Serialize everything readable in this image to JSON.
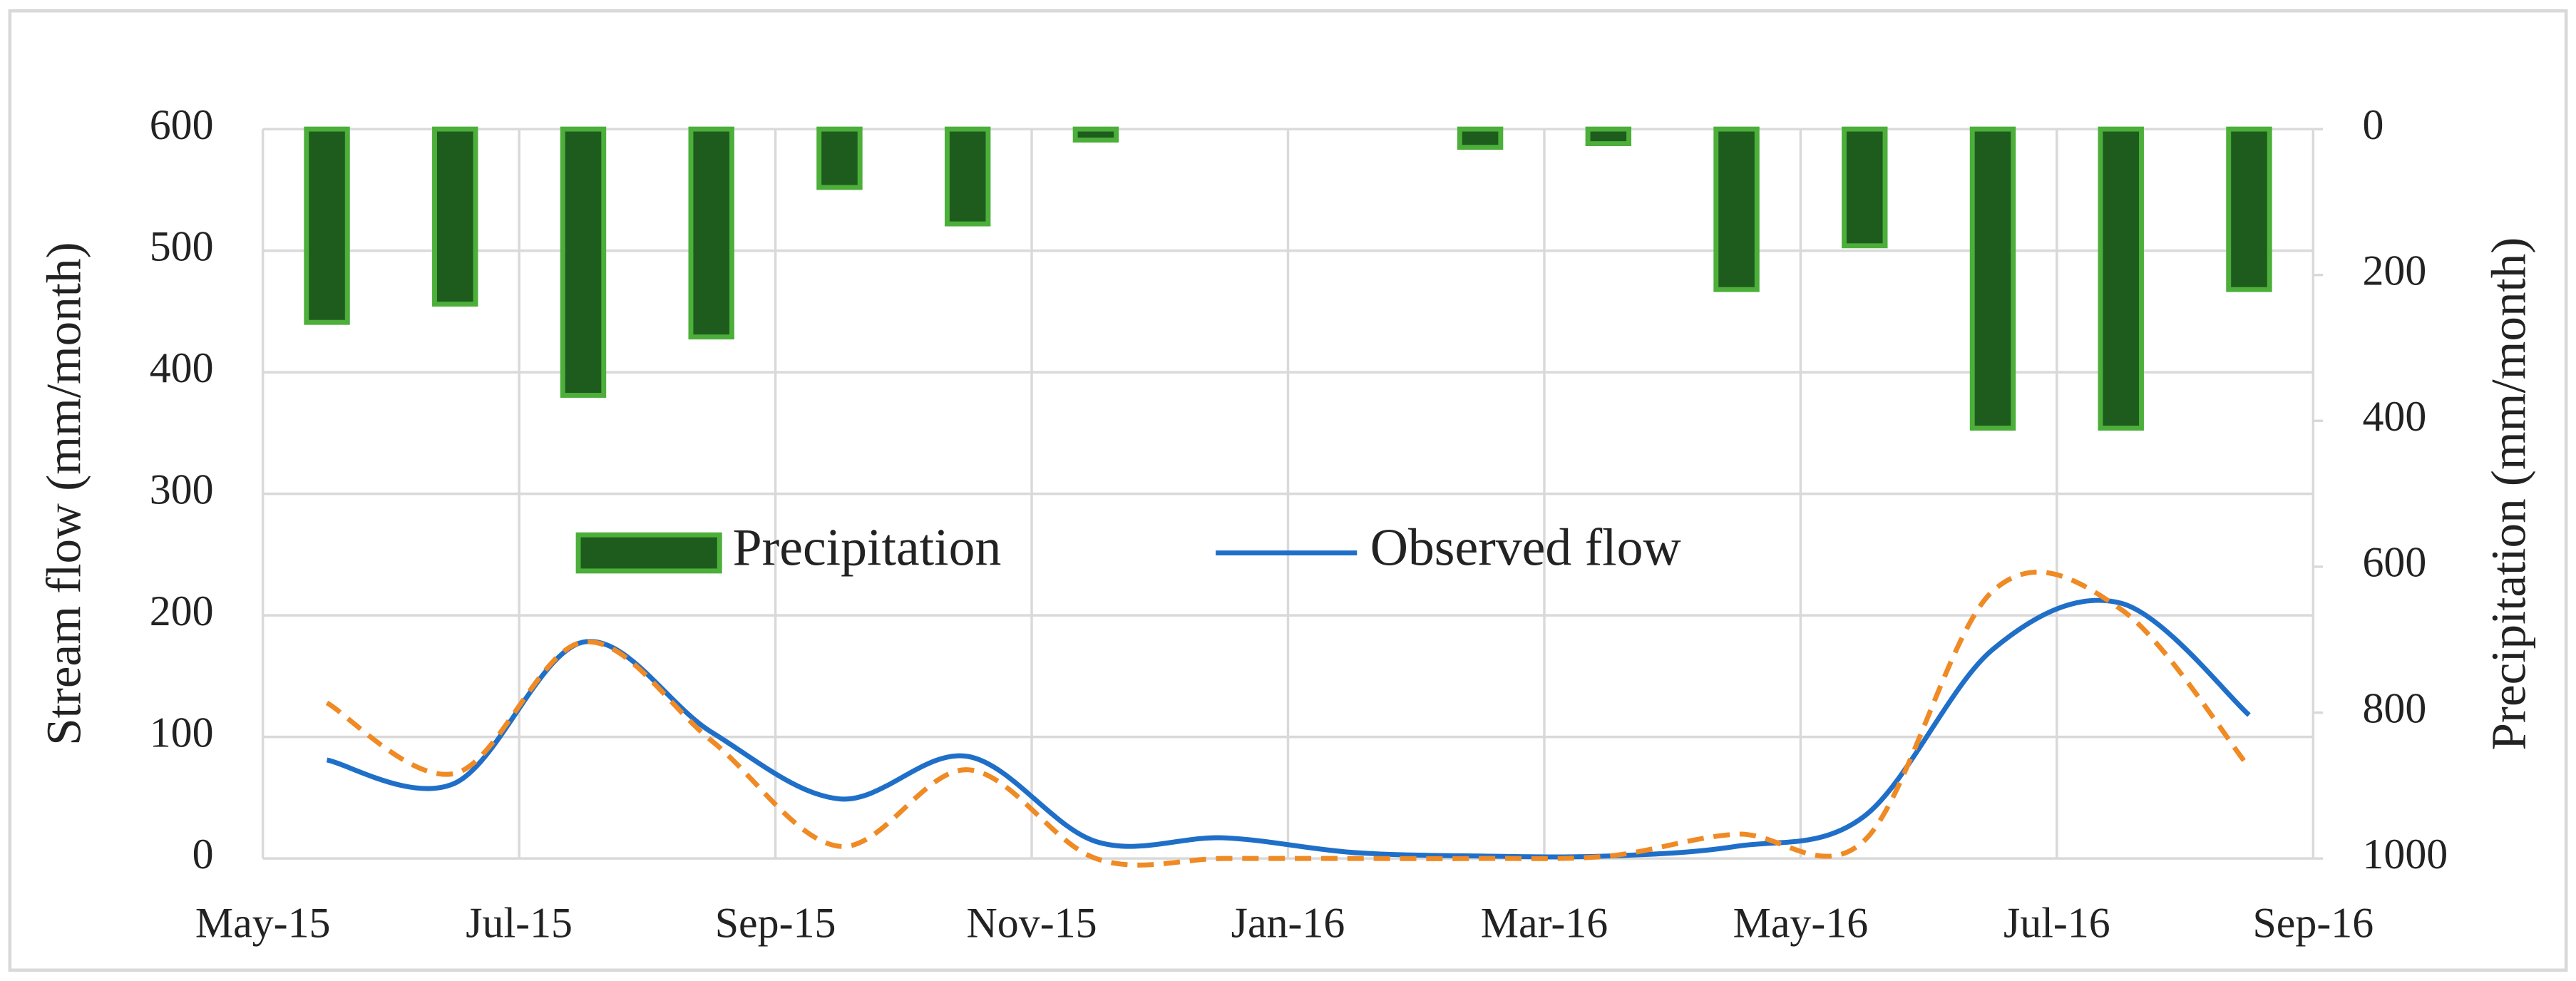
{
  "chart_data": {
    "type": "bar-line",
    "y_label": "Stream flow  (mm/month)",
    "y2_label": "Precipitation  (mm/month)",
    "xticks": [
      "May-15",
      "Jul-15",
      "Sep-15",
      "Nov-15",
      "Jan-16",
      "Mar-16",
      "May-16",
      "Jul-16",
      "Sep-16"
    ],
    "ylim": [
      0,
      600
    ],
    "yticks": [
      0,
      100,
      200,
      300,
      400,
      500,
      600
    ],
    "y2lim": [
      1000,
      0
    ],
    "y2ticks": [
      0,
      200,
      400,
      600,
      800,
      1000
    ],
    "grid": true,
    "legend": "center",
    "series": [
      {
        "name": "Precipitation",
        "type": "bar",
        "axis": "y2",
        "color": "#1e5c1e",
        "edge_color": "#4caf3a",
        "values": [
          265,
          240,
          365,
          285,
          80,
          130,
          15,
          0,
          0,
          25,
          20,
          220,
          160,
          410,
          410,
          220
        ]
      },
      {
        "name": "Observed flow",
        "type": "line",
        "color": "#1f6fc9",
        "values": [
          81,
          62,
          178,
          104,
          49,
          84,
          14,
          17,
          5,
          2,
          2,
          10,
          35,
          172,
          210,
          118
        ]
      },
      {
        "type": "line",
        "dashed": true,
        "color": "#f08a24",
        "values": [
          128,
          70,
          178,
          97,
          10,
          73,
          0,
          0,
          0,
          0,
          2,
          20,
          15,
          220,
          205,
          75
        ]
      }
    ]
  }
}
